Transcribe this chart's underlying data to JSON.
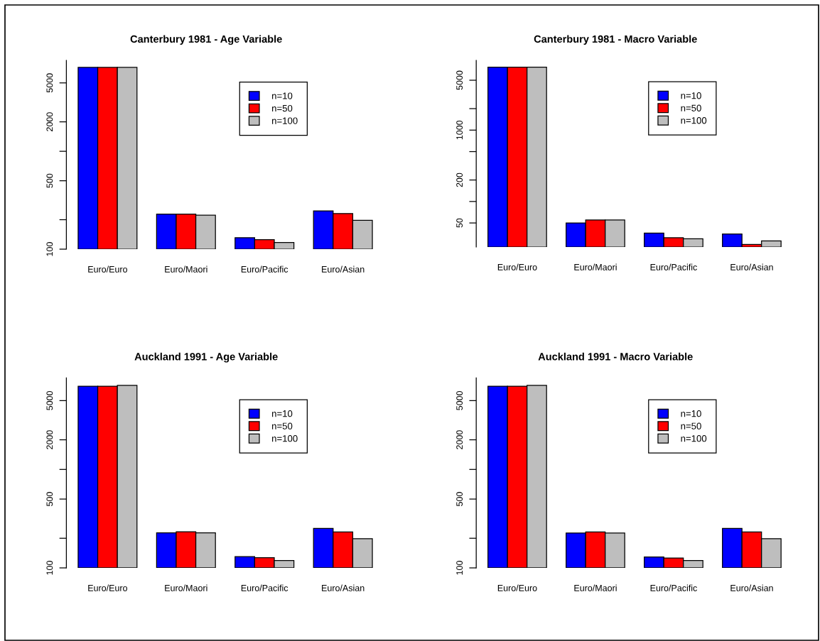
{
  "chart_data": [
    {
      "type": "bar",
      "title": "Canterbury 1981 - Age Variable",
      "categories": [
        "Euro/Euro",
        "Euro/Maori",
        "Euro/Pacific",
        "Euro/Asian"
      ],
      "series": [
        {
          "name": "n=10",
          "color": "#0000ff",
          "values": [
            7200,
            228,
            131,
            246
          ]
        },
        {
          "name": "n=50",
          "color": "#ff0000",
          "values": [
            7200,
            228,
            125,
            231
          ]
        },
        {
          "name": "n=100",
          "color": "#bebebe",
          "values": [
            7200,
            222,
            117,
            197
          ]
        }
      ],
      "log": "y",
      "ylim": [
        100,
        8500
      ],
      "yticks": [
        100,
        {
          "value": 200,
          "label": null
        },
        500,
        {
          "value": 1000,
          "label": null
        },
        2000,
        5000
      ],
      "legend": "top right"
    },
    {
      "type": "bar",
      "title": "Canterbury 1981 - Macro Variable",
      "categories": [
        "Euro/Euro",
        "Euro/Maori",
        "Euro/Pacific",
        "Euro/Asian"
      ],
      "series": [
        {
          "name": "n=10",
          "color": "#0000ff",
          "values": [
            7600,
            50,
            36,
            35
          ]
        },
        {
          "name": "n=50",
          "color": "#ff0000",
          "values": [
            7600,
            55,
            31,
            25
          ]
        },
        {
          "name": "n=100",
          "color": "#bebebe",
          "values": [
            7600,
            55,
            30,
            28
          ]
        }
      ],
      "log": "y",
      "ylim": [
        23,
        9500
      ],
      "yticks": [
        50,
        {
          "value": 100,
          "label": null
        },
        200,
        {
          "value": 500,
          "label": null
        },
        1000,
        {
          "value": 2000,
          "label": null
        },
        5000
      ],
      "legend": "top right"
    },
    {
      "type": "bar",
      "title": "Auckland 1991 - Age Variable",
      "categories": [
        "Euro/Euro",
        "Euro/Maori",
        "Euro/Pacific",
        "Euro/Asian"
      ],
      "series": [
        {
          "name": "n=10",
          "color": "#0000ff",
          "values": [
            7000,
            227,
            130,
            252
          ]
        },
        {
          "name": "n=50",
          "color": "#ff0000",
          "values": [
            7000,
            233,
            127,
            232
          ]
        },
        {
          "name": "n=100",
          "color": "#bebebe",
          "values": [
            7150,
            227,
            119,
            198
          ]
        }
      ],
      "log": "y",
      "ylim": [
        100,
        8500
      ],
      "yticks": [
        100,
        {
          "value": 200,
          "label": null
        },
        500,
        {
          "value": 1000,
          "label": null
        },
        2000,
        5000
      ],
      "legend": "top right"
    },
    {
      "type": "bar",
      "title": "Auckland 1991 - Macro Variable",
      "categories": [
        "Euro/Euro",
        "Euro/Maori",
        "Euro/Pacific",
        "Euro/Asian"
      ],
      "series": [
        {
          "name": "n=10",
          "color": "#0000ff",
          "values": [
            7000,
            226,
            129,
            252
          ]
        },
        {
          "name": "n=50",
          "color": "#ff0000",
          "values": [
            7000,
            232,
            126,
            232
          ]
        },
        {
          "name": "n=100",
          "color": "#bebebe",
          "values": [
            7150,
            226,
            119,
            198
          ]
        }
      ],
      "log": "y",
      "ylim": [
        100,
        8500
      ],
      "yticks": [
        100,
        {
          "value": 200,
          "label": null
        },
        500,
        {
          "value": 1000,
          "label": null
        },
        2000,
        5000
      ],
      "legend": "top right"
    }
  ]
}
